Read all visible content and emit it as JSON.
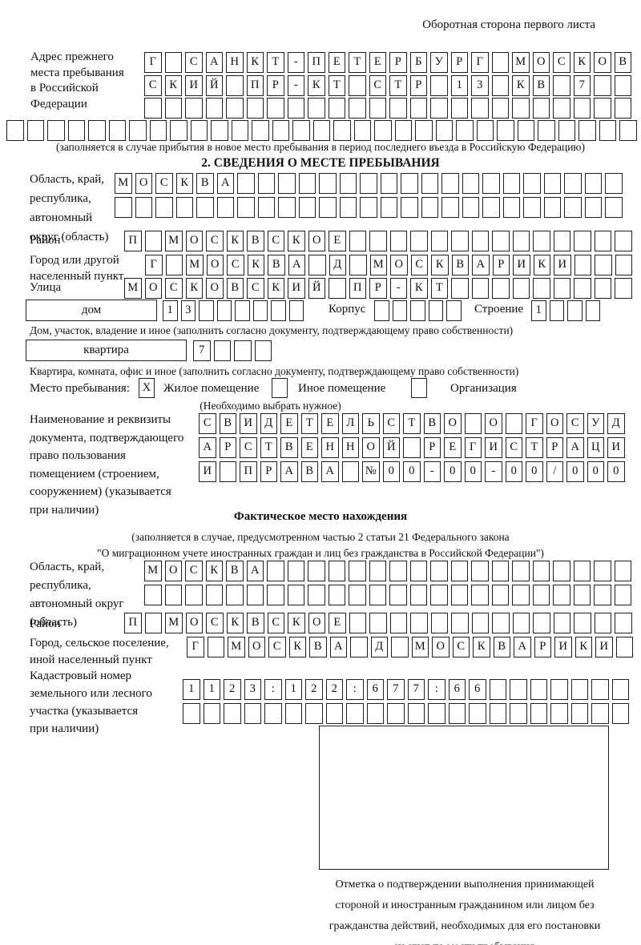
{
  "page": {
    "header_note": "Оборотная сторона первого листа"
  },
  "section1": {
    "label": "Адрес прежнего\nместа пребывания\nв Российской\nФедерации",
    "caption": "(заполняется в случае прибытия в новое место пребывания в период последнего въезда в Российскую Федерацию)"
  },
  "section2": {
    "title": "2. СВЕДЕНИЯ О МЕСТЕ ПРЕБЫВАНИЯ",
    "region_label": "Область, край,\nреспублика,\nавтономный\nокруг (область)",
    "district_label": "Район",
    "city_label": "Город или другой\nнаселенный пункт",
    "street_label": "Улица",
    "house_box_label": "дом",
    "korpus_label": "Корпус",
    "stroenie_label": "Строение",
    "house_caption": "Дом, участок, владение и иное (заполнить согласно документу, подтверждающему право собственности)",
    "flat_box_label": "квартира",
    "flat_caption": "Квартира, комната, офис и иное (заполнить согласно документу, подтверждающему право собственности)",
    "stay_label": "Место пребывания:",
    "stay_option1": "Жилое помещение",
    "stay_option2": "Иное помещение",
    "stay_option3": "Организация",
    "stay_check1": "X",
    "stay_check2": "",
    "stay_check3": "",
    "choose_note": "(Необходимо выбрать нужное)",
    "doc_label": "Наименование и реквизиты\nдокумента, подтверждающего\nправо пользования\nпомещением (строением,\nсооружением) (указывается\nпри наличии)"
  },
  "section3": {
    "title": "Фактическое место нахождения",
    "caption": "(заполняется в случае, предусмотренном частью 2 статьи 21 Федерального закона\n\"О миграционном учете иностранных граждан и лиц без гражданства в Российской Федерации\")",
    "region_label": "Область, край,\nреспублика,\nавтономный округ\n(область)",
    "district_label": "Район",
    "city_label": "Город, сельское поселение,\nиной населенный пункт",
    "cadastre_label": "Кадастровый номер\nземельного или лесного\nучастка (указывается\nпри наличии)",
    "stamp_caption": "Отметка о подтверждении выполнения принимающей\nстороной и иностранным гражданином или лицом без\nгражданства действий, необходимых для его постановки\nна учет по месту пребывания"
  },
  "boxrows": {
    "addr1": {
      "count": 24,
      "chars": "Г САНКТ-ПЕТЕРБУРГ МОСКОВ"
    },
    "addr2": {
      "count": 24,
      "chars": "СКИЙ ПР-КТ СТР 13 КВ 7"
    },
    "addr3": {
      "count": 24,
      "chars": ""
    },
    "addr4": {
      "count": 31,
      "chars": ""
    },
    "region1": {
      "count": 25,
      "chars": "МОСКВА"
    },
    "region2": {
      "count": 25,
      "chars": ""
    },
    "district": {
      "count": 25,
      "chars": "П МОСКВСКОЕ"
    },
    "city": {
      "count": 24,
      "chars": "Г МОСКВА Д МОСКВАРИКИ"
    },
    "street": {
      "count": 25,
      "chars": "МОСКОВСКИЙ ПР-КТ"
    },
    "house": {
      "count": 8,
      "chars": "13"
    },
    "korpus": {
      "count": 5,
      "chars": ""
    },
    "stroenie": {
      "count": 4,
      "chars": "1"
    },
    "flat": {
      "count": 4,
      "chars": "7"
    },
    "doc1": {
      "count": 21,
      "chars": "СВИДЕТЕЛЬСТВО О ГОСУД"
    },
    "doc2": {
      "count": 21,
      "chars": "АРСТВЕННОЙ РЕГИСТРАЦИ"
    },
    "doc3": {
      "count": 21,
      "chars": "И ПРАВА №00-00-00/000"
    },
    "f_region1": {
      "count": 24,
      "chars": "МОСКВА"
    },
    "f_region2": {
      "count": 24,
      "chars": ""
    },
    "f_district": {
      "count": 25,
      "chars": "П МОСКВСКОЕ"
    },
    "f_city": {
      "count": 22,
      "chars": "Г МОСКВА Д МОСКВАРИКИ"
    },
    "cad1": {
      "count": 22,
      "chars": "1123:122:677:66"
    },
    "cad2": {
      "count": 22,
      "chars": ""
    }
  }
}
